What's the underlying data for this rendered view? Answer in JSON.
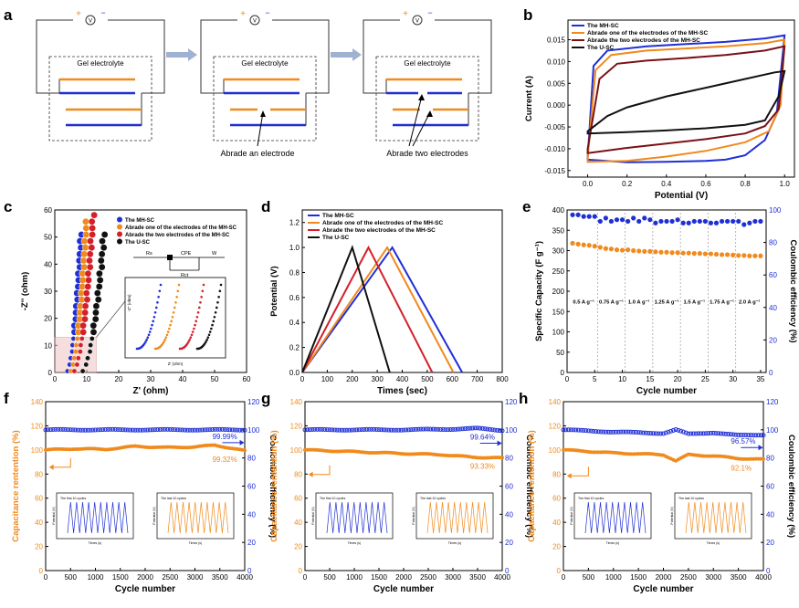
{
  "colors": {
    "blue": "#1f2fd6",
    "orange": "#f08a1c",
    "darkred": "#7a1016",
    "red": "#d4202a",
    "black": "#111111",
    "arrow": "#8fa5c9",
    "grey": "#777777"
  },
  "panel_a": {
    "label": "a",
    "gel_label": "Gel electrolyte",
    "power_plus": "+",
    "power_minus": "−",
    "voltmeter": "V",
    "annotation_one": "Abrade an electrode",
    "annotation_two": "Abrade two electrodes"
  },
  "chart_data": [
    {
      "id": "b",
      "type": "line",
      "panel_label": "b",
      "xlabel": "Potential (V)",
      "ylabel": "Current (A)",
      "xlim": [
        -0.1,
        1.05
      ],
      "ylim": [
        -0.0165,
        0.0195
      ],
      "xticks": [
        "0.0",
        "0.2",
        "0.4",
        "0.6",
        "0.8",
        "1.0"
      ],
      "xtick_values": [
        0,
        0.2,
        0.4,
        0.6,
        0.8,
        1.0
      ],
      "yticks": [
        "-0.015",
        "-0.010",
        "-0.005",
        "0.000",
        "0.005",
        "0.010",
        "0.015"
      ],
      "ytick_values": [
        -0.015,
        -0.01,
        -0.005,
        0,
        0.005,
        0.01,
        0.015
      ],
      "series": [
        {
          "name": "The MH-SC",
          "color": "blue",
          "upper": [
            [
              0,
              -0.012
            ],
            [
              0.03,
              0.009
            ],
            [
              0.1,
              0.0125
            ],
            [
              0.3,
              0.0135
            ],
            [
              0.5,
              0.014
            ],
            [
              0.7,
              0.0145
            ],
            [
              0.9,
              0.0153
            ],
            [
              1.0,
              0.016
            ]
          ],
          "lower": [
            [
              0,
              -0.0125
            ],
            [
              0.2,
              -0.0131
            ],
            [
              0.4,
              -0.013
            ],
            [
              0.6,
              -0.0128
            ],
            [
              0.7,
              -0.0125
            ],
            [
              0.8,
              -0.0115
            ],
            [
              0.9,
              -0.008
            ],
            [
              0.96,
              -0.002
            ],
            [
              1.0,
              0.016
            ]
          ]
        },
        {
          "name": "Abrade one of the electrodes of the MH-SC",
          "color": "orange",
          "upper": [
            [
              0,
              -0.012
            ],
            [
              0.04,
              0.008
            ],
            [
              0.12,
              0.0115
            ],
            [
              0.3,
              0.0125
            ],
            [
              0.5,
              0.013
            ],
            [
              0.7,
              0.0135
            ],
            [
              0.9,
              0.0142
            ],
            [
              1.0,
              0.015
            ]
          ],
          "lower": [
            [
              0,
              -0.013
            ],
            [
              0.2,
              -0.0128
            ],
            [
              0.4,
              -0.0118
            ],
            [
              0.6,
              -0.0105
            ],
            [
              0.8,
              -0.0085
            ],
            [
              0.92,
              -0.006
            ],
            [
              0.98,
              0.0
            ],
            [
              1.0,
              0.015
            ]
          ]
        },
        {
          "name": "Abrade the two electrodes of the MH-SC",
          "color": "darkred",
          "upper": [
            [
              0,
              -0.01
            ],
            [
              0.06,
              0.006
            ],
            [
              0.15,
              0.0095
            ],
            [
              0.3,
              0.0102
            ],
            [
              0.5,
              0.0108
            ],
            [
              0.7,
              0.0115
            ],
            [
              0.9,
              0.0125
            ],
            [
              1.0,
              0.0135
            ]
          ],
          "lower": [
            [
              0,
              -0.011
            ],
            [
              0.2,
              -0.0098
            ],
            [
              0.4,
              -0.0088
            ],
            [
              0.6,
              -0.0078
            ],
            [
              0.8,
              -0.0065
            ],
            [
              0.9,
              -0.0048
            ],
            [
              0.97,
              -0.001
            ],
            [
              1.0,
              0.0135
            ]
          ]
        },
        {
          "name": "The U-SC",
          "color": "black",
          "upper": [
            [
              0,
              -0.006
            ],
            [
              0.1,
              -0.0025
            ],
            [
              0.2,
              -0.0005
            ],
            [
              0.4,
              0.002
            ],
            [
              0.6,
              0.004
            ],
            [
              0.8,
              0.006
            ],
            [
              0.95,
              0.0075
            ],
            [
              1.0,
              0.0078
            ]
          ],
          "lower": [
            [
              0,
              -0.0065
            ],
            [
              0.2,
              -0.0062
            ],
            [
              0.4,
              -0.0058
            ],
            [
              0.6,
              -0.0053
            ],
            [
              0.8,
              -0.0045
            ],
            [
              0.9,
              -0.0035
            ],
            [
              0.97,
              0.002
            ],
            [
              1.0,
              0.0078
            ]
          ]
        }
      ]
    },
    {
      "id": "c",
      "type": "scatter",
      "panel_label": "c",
      "xlabel": "Z' (ohm)",
      "ylabel": "-Z'' (ohm)",
      "xlim": [
        0,
        60
      ],
      "ylim": [
        0,
        60
      ],
      "xticks": [
        "0",
        "10",
        "20",
        "30",
        "40",
        "50",
        "60"
      ],
      "xtick_values": [
        0,
        10,
        20,
        30,
        40,
        50,
        60
      ],
      "yticks": [
        "0",
        "10",
        "20",
        "30",
        "40",
        "50",
        "60"
      ],
      "ytick_values": [
        0,
        10,
        20,
        30,
        40,
        50,
        60
      ],
      "circuit_labels": [
        "Rs",
        "CPE",
        "Rct",
        "W"
      ],
      "inset_xlabel": "Z' (ohm)",
      "inset_ylabel": "-Z'' (ohm)",
      "series": [
        {
          "name": "The MH-SC",
          "color": "blue",
          "x0": 3.5,
          "xs": 4.8,
          "yend": 53
        },
        {
          "name": "Abrade one of the electrodes of the MH-SC",
          "color": "orange",
          "x0": 4.5,
          "xs": 5.5,
          "yend": 58
        },
        {
          "name": "Abrade the two electrodes of the MH-SC",
          "color": "red",
          "x0": 5.5,
          "xs": 6.6,
          "yend": 60
        },
        {
          "name": "The U-SC",
          "color": "black",
          "x0": 8,
          "xs": 7.4,
          "yend": 51
        }
      ]
    },
    {
      "id": "d",
      "type": "line",
      "panel_label": "d",
      "xlabel": "Times (sec)",
      "ylabel": "Potential (V)",
      "xlim": [
        0,
        800
      ],
      "ylim": [
        0,
        1.3
      ],
      "xticks": [
        "0",
        "100",
        "200",
        "300",
        "400",
        "500",
        "600",
        "700",
        "800"
      ],
      "xtick_values": [
        0,
        100,
        200,
        300,
        400,
        500,
        600,
        700,
        800
      ],
      "yticks": [
        "0.0",
        "0.2",
        "0.4",
        "0.6",
        "0.8",
        "1.0",
        "1.2"
      ],
      "ytick_values": [
        0,
        0.2,
        0.4,
        0.6,
        0.8,
        1.0,
        1.2
      ],
      "series": [
        {
          "name": "The MH-SC",
          "color": "blue",
          "points": [
            [
              0,
              0
            ],
            [
              360,
              1.0
            ],
            [
              640,
              0
            ]
          ]
        },
        {
          "name": "Abrade one of the electrodes of the MH-SC",
          "color": "orange",
          "points": [
            [
              0,
              0
            ],
            [
              340,
              1.0
            ],
            [
              605,
              0
            ]
          ]
        },
        {
          "name": "Abrade the two electrodes of the MH-SC",
          "color": "red",
          "points": [
            [
              0,
              0
            ],
            [
              265,
              1.0
            ],
            [
              520,
              0
            ]
          ]
        },
        {
          "name": "The U-SC",
          "color": "black",
          "points": [
            [
              0,
              0
            ],
            [
              200,
              1.0
            ],
            [
              350,
              0
            ]
          ]
        }
      ]
    },
    {
      "id": "e",
      "type": "scatter",
      "panel_label": "e",
      "xlabel": "Cycle number",
      "ylabel": "Specific Capacity (F g⁻¹)",
      "y2label": "Coulombic efficiency (%)",
      "xlim": [
        0,
        36
      ],
      "ylim": [
        0,
        400
      ],
      "y2lim": [
        0,
        100
      ],
      "xticks": [
        "0",
        "5",
        "10",
        "15",
        "20",
        "25",
        "30",
        "35"
      ],
      "xtick_values": [
        0,
        5,
        10,
        15,
        20,
        25,
        30,
        35
      ],
      "yticks": [
        "0",
        "50",
        "100",
        "150",
        "200",
        "250",
        "300",
        "350",
        "400"
      ],
      "ytick_values": [
        0,
        50,
        100,
        150,
        200,
        250,
        300,
        350,
        400
      ],
      "y2ticks": [
        "0",
        "20",
        "40",
        "60",
        "80",
        "100"
      ],
      "y2tick_values": [
        0,
        20,
        40,
        60,
        80,
        100
      ],
      "rate_labels": [
        "0.5 A g⁻¹",
        "0.75 A g⁻¹",
        "1.0 A g⁻¹",
        "1.25 A g⁻¹",
        "1.5 A g⁻¹",
        "1.75 A g⁻¹",
        "2.0 A g⁻¹"
      ],
      "capacity": [
        318,
        316,
        314,
        313,
        311,
        308,
        305,
        304,
        302,
        301,
        302,
        300,
        299,
        298,
        298,
        297,
        296,
        296,
        295,
        295,
        294,
        294,
        293,
        293,
        292,
        292,
        291,
        290,
        290,
        289,
        288,
        288,
        287,
        287,
        287
      ],
      "efficiency": [
        97,
        97,
        96,
        96,
        96,
        93,
        95,
        93,
        94,
        94,
        93,
        95,
        93,
        95,
        94,
        92,
        93,
        93,
        93,
        94,
        92,
        92,
        93,
        93,
        93,
        92,
        92,
        93,
        93,
        93,
        93,
        91,
        92,
        93,
        93
      ]
    },
    {
      "id": "f",
      "type": "line",
      "panel_label": "f",
      "xlabel": "Cycle number",
      "ylabel": "Capacitance rentention (%)",
      "y2label": "Coulombic efficiency (%)",
      "xlim": [
        0,
        4000
      ],
      "ylim": [
        0,
        140
      ],
      "y2lim": [
        0,
        120
      ],
      "xticks": [
        "0",
        "500",
        "1000",
        "1500",
        "2000",
        "2500",
        "3000",
        "3500",
        "4000"
      ],
      "xtick_values": [
        0,
        500,
        1000,
        1500,
        2000,
        2500,
        3000,
        3500,
        4000
      ],
      "yticks": [
        "0",
        "20",
        "40",
        "60",
        "80",
        "100",
        "120",
        "140"
      ],
      "ytick_values": [
        0,
        20,
        40,
        60,
        80,
        100,
        120,
        140
      ],
      "y2ticks": [
        "0",
        "20",
        "40",
        "60",
        "80",
        "100",
        "120"
      ],
      "y2tick_values": [
        0,
        20,
        40,
        60,
        80,
        100,
        120
      ],
      "efficiency_label": "99.99%",
      "retention_label": "99.32%",
      "efficiency": [
        [
          0,
          100
        ],
        [
          1000,
          100
        ],
        [
          2000,
          100
        ],
        [
          3000,
          100
        ],
        [
          4000,
          100
        ]
      ],
      "retention": [
        [
          0,
          100
        ],
        [
          600,
          101
        ],
        [
          1200,
          100.5
        ],
        [
          1800,
          103
        ],
        [
          2400,
          102
        ],
        [
          3000,
          102.5
        ],
        [
          3400,
          104
        ],
        [
          4000,
          99.3
        ]
      ],
      "inset_left_label": "The first 10 cycles",
      "inset_right_label": "The last 10 cycles",
      "inset_xlabel": "Times (s)",
      "inset_ylabel": "Potential (V)"
    },
    {
      "id": "g",
      "type": "line",
      "panel_label": "g",
      "xlabel": "Cycle number",
      "ylabel": "Capacitance rentention (%)",
      "y2label": "Coulombic efficiency (%)",
      "xlim": [
        0,
        4000
      ],
      "ylim": [
        0,
        140
      ],
      "y2lim": [
        0,
        120
      ],
      "xticks": [
        "0",
        "500",
        "1000",
        "1500",
        "2000",
        "2500",
        "3000",
        "3500",
        "4000"
      ],
      "xtick_values": [
        0,
        500,
        1000,
        1500,
        2000,
        2500,
        3000,
        3500,
        4000
      ],
      "yticks": [
        "0",
        "20",
        "40",
        "60",
        "80",
        "100",
        "120",
        "140"
      ],
      "ytick_values": [
        0,
        20,
        40,
        60,
        80,
        100,
        120,
        140
      ],
      "y2ticks": [
        "0",
        "20",
        "40",
        "60",
        "80",
        "100",
        "120"
      ],
      "y2tick_values": [
        0,
        20,
        40,
        60,
        80,
        100,
        120
      ],
      "efficiency_label": "99.64%",
      "retention_label": "93.33%",
      "efficiency": [
        [
          0,
          100
        ],
        [
          1000,
          100
        ],
        [
          2000,
          100
        ],
        [
          3000,
          100.5
        ],
        [
          3500,
          101
        ],
        [
          4000,
          99.6
        ]
      ],
      "retention": [
        [
          0,
          100
        ],
        [
          1000,
          98.5
        ],
        [
          2000,
          97
        ],
        [
          2800,
          96
        ],
        [
          3400,
          94
        ],
        [
          4000,
          93.3
        ]
      ],
      "inset_left_label": "The first 10 cycles",
      "inset_right_label": "The last 10 cycles",
      "inset_xlabel": "Times (s)",
      "inset_ylabel": "Potential (V)"
    },
    {
      "id": "h",
      "type": "line",
      "panel_label": "h",
      "xlabel": "Cycle number",
      "ylabel": "Capacitance rentention (%)",
      "y2label": "Coulombic efficiency (%)",
      "xlim": [
        0,
        4000
      ],
      "ylim": [
        0,
        140
      ],
      "y2lim": [
        0,
        120
      ],
      "xticks": [
        "0",
        "500",
        "1000",
        "1500",
        "2000",
        "2500",
        "3000",
        "3500",
        "4000"
      ],
      "xtick_values": [
        0,
        500,
        1000,
        1500,
        2000,
        2500,
        3000,
        3500,
        4000
      ],
      "yticks": [
        "0",
        "20",
        "40",
        "60",
        "80",
        "100",
        "120",
        "140"
      ],
      "ytick_values": [
        0,
        20,
        40,
        60,
        80,
        100,
        120,
        140
      ],
      "y2ticks": [
        "0",
        "20",
        "40",
        "60",
        "80",
        "100",
        "120"
      ],
      "y2tick_values": [
        0,
        20,
        40,
        60,
        80,
        100,
        120
      ],
      "efficiency_label": "96.57%",
      "retention_label": "92.1%",
      "efficiency": [
        [
          0,
          100
        ],
        [
          1000,
          98.5
        ],
        [
          2000,
          97.5
        ],
        [
          2250,
          100
        ],
        [
          2500,
          97
        ],
        [
          3000,
          98
        ],
        [
          3500,
          96
        ],
        [
          4000,
          96.5
        ]
      ],
      "retention": [
        [
          0,
          100
        ],
        [
          1000,
          97.5
        ],
        [
          2000,
          96
        ],
        [
          2250,
          91
        ],
        [
          2500,
          96
        ],
        [
          3000,
          95
        ],
        [
          3500,
          93
        ],
        [
          4000,
          92.1
        ]
      ],
      "inset_left_label": "The first 10 cycles",
      "inset_right_label": "The last 10 cycles",
      "inset_xlabel": "Times (s)",
      "inset_ylabel": "Potential (V)"
    }
  ]
}
